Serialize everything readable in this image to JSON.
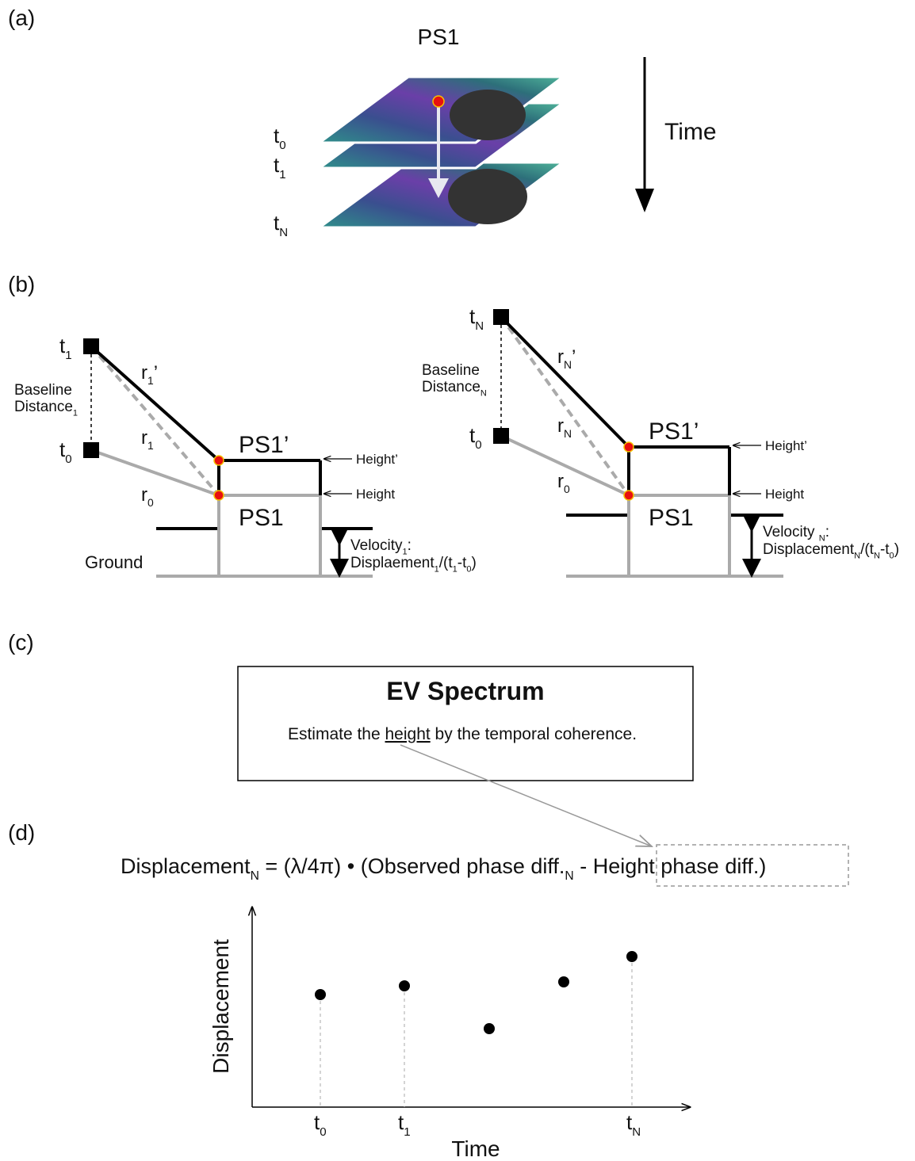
{
  "panel_a": {
    "label": "(a)",
    "title": "PS1",
    "times": [
      [
        "t",
        "0"
      ],
      [
        "t",
        "1"
      ],
      [
        "t",
        "N"
      ]
    ],
    "arrow_label": "Time"
  },
  "panel_b": {
    "label": "(b)",
    "left": {
      "sat_new": [
        "t",
        "1"
      ],
      "sat_old": [
        "t",
        "0"
      ],
      "baseline_1": [
        "Baseline"
      ],
      "baseline_2": [
        "Distance",
        "1"
      ],
      "r_new_prime": [
        "r",
        "1",
        "’"
      ],
      "r_new": [
        "r",
        "1"
      ],
      "r_old": [
        "r",
        "0"
      ],
      "ps_new": "PS1’",
      "ps_old": "PS1",
      "height_new": "Height’",
      "height_old": "Height",
      "ground": "Ground",
      "velocity": [
        "Velocity",
        "1",
        ":"
      ],
      "formula": [
        "Displaement",
        "1",
        "/(t",
        "1",
        "-t",
        "0",
        ")"
      ]
    },
    "right": {
      "sat_new": [
        "t",
        "N"
      ],
      "sat_old": [
        "t",
        "0"
      ],
      "baseline_1": [
        "Baseline"
      ],
      "baseline_2": [
        "Distance",
        "N"
      ],
      "r_new_prime": [
        "r",
        "N",
        "’"
      ],
      "r_new": [
        "r",
        "N"
      ],
      "r_old": [
        "r",
        "0"
      ],
      "ps_new": "PS1’",
      "ps_old": "PS1",
      "height_new": "Height’",
      "height_old": "Height",
      "velocity": [
        "Velocity ",
        "N",
        ":"
      ],
      "formula": [
        "Displacement",
        "N",
        "/(t",
        "N",
        "-t",
        "0",
        ")"
      ]
    }
  },
  "panel_c": {
    "label": "(c)",
    "box_title": "EV Spectrum",
    "text": [
      "Estimate the ",
      "height",
      " by the temporal coherence."
    ]
  },
  "panel_d": {
    "label": "(d)",
    "equation": [
      "Displacement",
      "N",
      " = (λ/4π) • (Observed phase diff.",
      "N",
      " - Height phase diff.)"
    ],
    "y_label": "Displacement",
    "x_label": "Time",
    "ticks": [
      [
        "t",
        "0"
      ],
      [
        "t",
        "1"
      ],
      [
        "t",
        "N"
      ]
    ]
  }
}
